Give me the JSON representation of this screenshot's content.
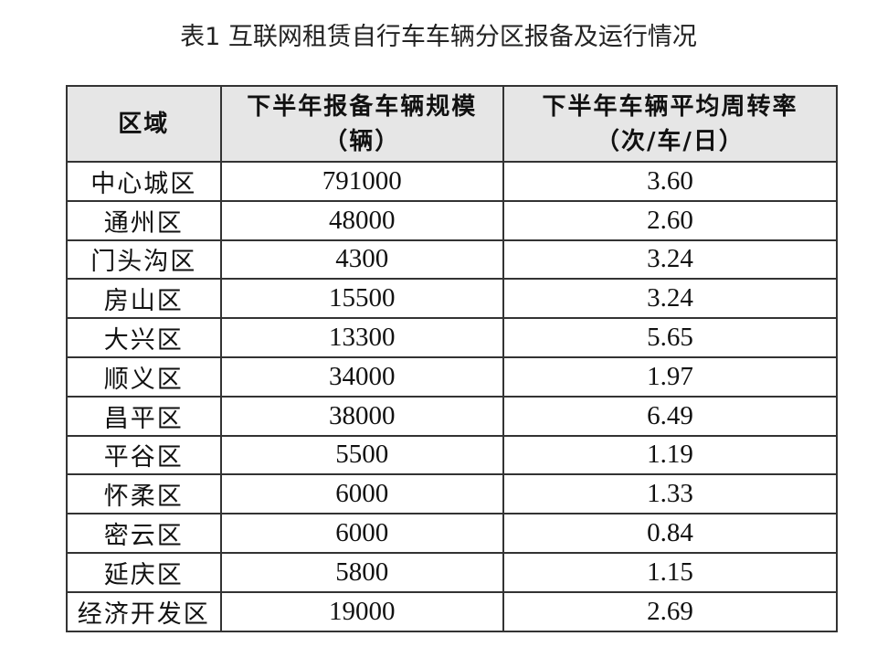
{
  "title": "表1 互联网租赁自行车车辆分区报备及运行情况",
  "table": {
    "headers": [
      {
        "line1": "区域",
        "line2": ""
      },
      {
        "line1": "下半年报备车辆规模",
        "line2": "（辆）"
      },
      {
        "line1": "下半年车辆平均周转率",
        "line2": "（次/车/日）"
      }
    ],
    "rows": [
      [
        "中心城区",
        "791000",
        "3.60"
      ],
      [
        "通州区",
        "48000",
        "2.60"
      ],
      [
        "门头沟区",
        "4300",
        "3.24"
      ],
      [
        "房山区",
        "15500",
        "3.24"
      ],
      [
        "大兴区",
        "13300",
        "5.65"
      ],
      [
        "顺义区",
        "34000",
        "1.97"
      ],
      [
        "昌平区",
        "38000",
        "6.49"
      ],
      [
        "平谷区",
        "5500",
        "1.19"
      ],
      [
        "怀柔区",
        "6000",
        "1.33"
      ],
      [
        "密云区",
        "6000",
        "0.84"
      ],
      [
        "延庆区",
        "5800",
        "1.15"
      ],
      [
        "经济开发区",
        "19000",
        "2.69"
      ]
    ]
  }
}
